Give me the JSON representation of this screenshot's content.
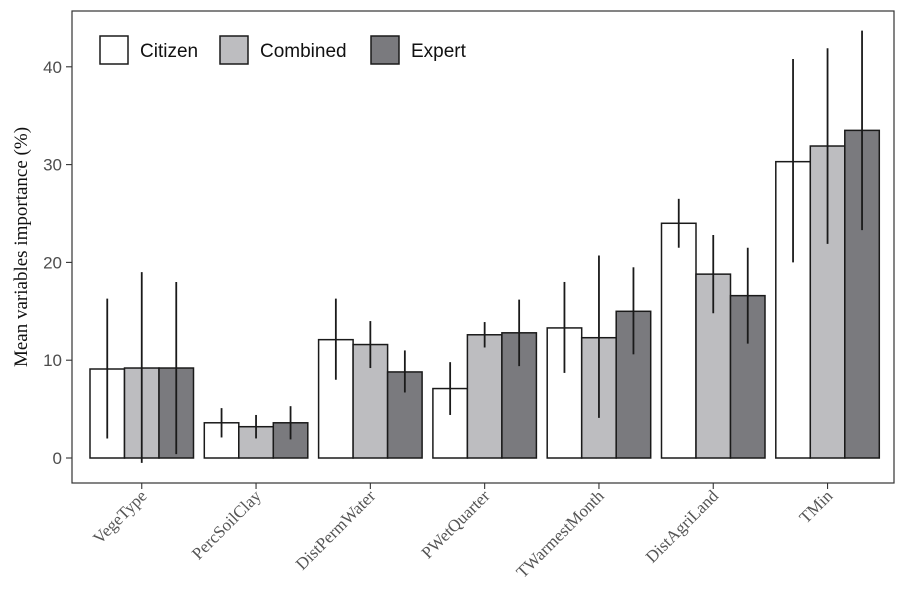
{
  "chart_data": {
    "type": "bar",
    "title": "",
    "xlabel": "",
    "ylabel": "Mean variables importance (%)",
    "ylim": [
      0,
      45
    ],
    "yticks": [
      0,
      10,
      20,
      30,
      40
    ],
    "grid": false,
    "legend_position": "top-left",
    "categories": [
      "VegeType",
      "PercSoilClay",
      "DistPermWater",
      "PWetQuarter",
      "TWarmestMonth",
      "DistAgriLand",
      "TMin"
    ],
    "series": [
      {
        "name": "Citizen",
        "color": "#ffffff",
        "values": [
          9.1,
          3.6,
          12.1,
          7.1,
          13.3,
          24.0,
          30.3
        ],
        "err_low": [
          2.0,
          2.1,
          8.0,
          4.4,
          8.7,
          21.5,
          20.0
        ],
        "err_high": [
          16.3,
          5.1,
          16.3,
          9.8,
          18.0,
          26.5,
          40.8
        ]
      },
      {
        "name": "Combined",
        "color": "#bdbdc0",
        "values": [
          9.2,
          3.2,
          11.6,
          12.6,
          12.3,
          18.8,
          31.9
        ],
        "err_low": [
          -0.5,
          2.0,
          9.2,
          11.3,
          4.1,
          14.8,
          21.9
        ],
        "err_high": [
          19.0,
          4.4,
          14.0,
          13.9,
          20.7,
          22.8,
          41.9
        ]
      },
      {
        "name": "Expert",
        "color": "#7a7a7e",
        "values": [
          9.2,
          3.6,
          8.8,
          12.8,
          15.0,
          16.6,
          33.5
        ],
        "err_low": [
          0.4,
          1.9,
          6.7,
          9.4,
          10.6,
          11.7,
          23.3
        ],
        "err_high": [
          18.0,
          5.3,
          11.0,
          16.2,
          19.5,
          21.5,
          43.7
        ]
      }
    ]
  }
}
